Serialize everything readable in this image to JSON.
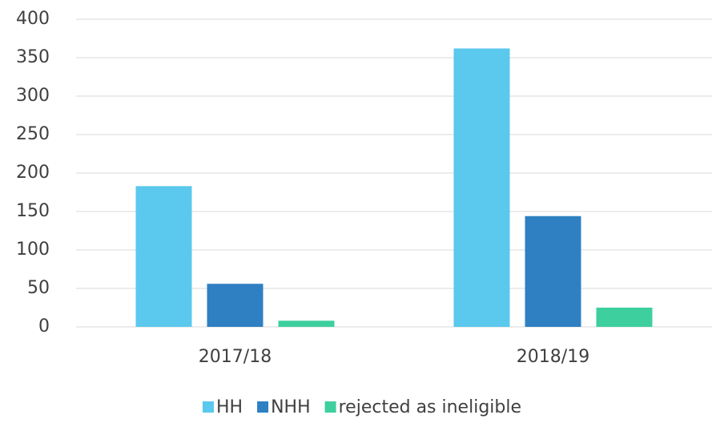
{
  "chart_data": {
    "type": "bar",
    "categories": [
      "2017/18",
      "2018/19"
    ],
    "series": [
      {
        "name": "HH",
        "color": "#5bc8ee",
        "values": [
          183,
          362
        ]
      },
      {
        "name": "NHH",
        "color": "#2e80c2",
        "values": [
          56,
          144
        ]
      },
      {
        "name": "rejected as ineligible",
        "color": "#3ecf9e",
        "values": [
          8,
          25
        ]
      }
    ],
    "ylim": [
      0,
      400
    ],
    "yticks": [
      0,
      50,
      100,
      150,
      200,
      250,
      300,
      350,
      400
    ],
    "grid": true,
    "legend": "bottom"
  }
}
